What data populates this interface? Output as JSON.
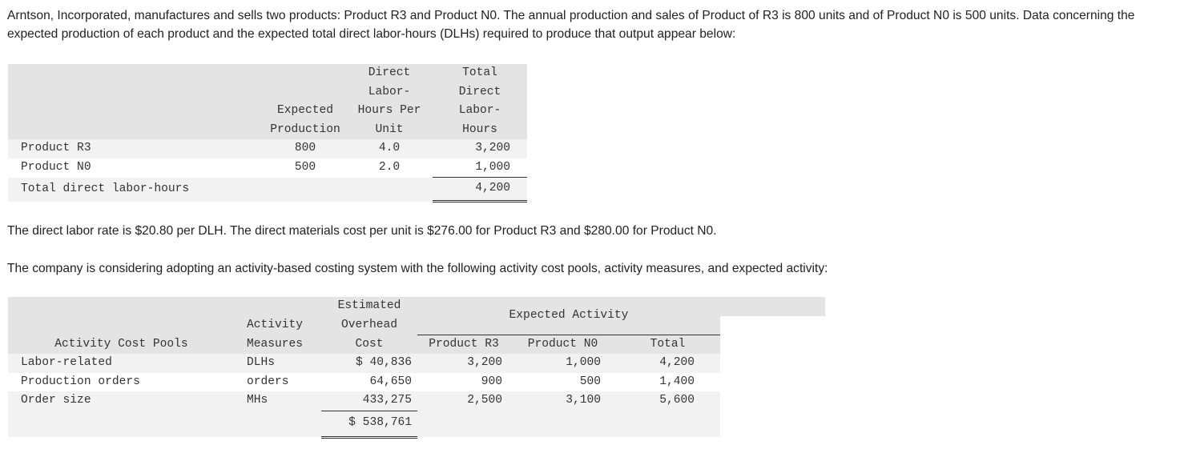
{
  "intro": "Arntson, Incorporated, manufactures and sells two products: Product R3 and Product N0. The annual production and sales of Product of R3 is 800 units and of Product N0 is 500 units. Data concerning the expected production of each product and the expected total direct labor-hours (DLHs) required to produce that output appear below:",
  "labor_table": {
    "headers": {
      "production": [
        "Expected",
        "Production"
      ],
      "hours_per_unit": [
        "Direct",
        "Labor-",
        "Hours Per",
        "Unit"
      ],
      "total_hours": [
        "Total",
        "Direct",
        "Labor-",
        "Hours"
      ]
    },
    "rows": [
      {
        "label": "Product R3",
        "production": "800",
        "hours_per_unit": "4.0",
        "total": "3,200"
      },
      {
        "label": "Product N0",
        "production": "500",
        "hours_per_unit": "2.0",
        "total": "1,000"
      }
    ],
    "total_row": {
      "label": "Total direct labor-hours",
      "total": "4,200"
    }
  },
  "rates_text": "The direct labor rate is $20.80 per DLH. The direct materials cost per unit is $276.00 for Product R3 and $280.00 for Product N0.",
  "abc_text": "The company is considering adopting an activity-based costing system with the following activity cost pools, activity measures, and expected activity:",
  "abc_table": {
    "headers": {
      "pools": "Activity Cost Pools",
      "measures": [
        "Activity",
        "Measures"
      ],
      "cost": [
        "Estimated",
        "Overhead",
        "Cost"
      ],
      "expected_activity": "Expected Activity",
      "r3": "Product R3",
      "n0": "Product N0",
      "total": "Total"
    },
    "rows": [
      {
        "pool": "Labor-related",
        "measure": "DLHs",
        "cost": "$ 40,836",
        "r3": "3,200",
        "n0": "1,000",
        "total": "4,200"
      },
      {
        "pool": "Production orders",
        "measure": "orders",
        "cost": "64,650",
        "r3": "900",
        "n0": "500",
        "total": "1,400"
      },
      {
        "pool": "Order size",
        "measure": "MHs",
        "cost": "433,275",
        "r3": "2,500",
        "n0": "3,100",
        "total": "5,600"
      }
    ],
    "total_cost": "$ 538,761"
  }
}
